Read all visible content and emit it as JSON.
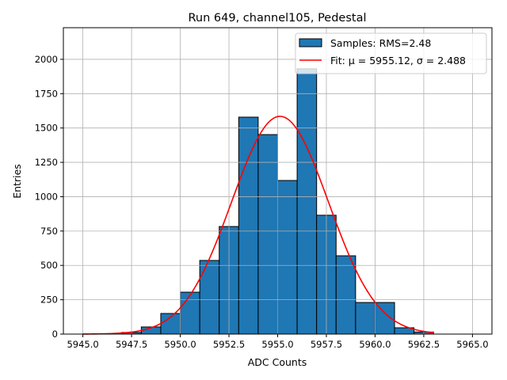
{
  "chart_data": {
    "type": "bar",
    "title": "Run 649, channel105, Pedestal",
    "xlabel": "ADC Counts",
    "ylabel": "Entries",
    "xlim": [
      5944,
      5966
    ],
    "ylim": [
      0,
      2230
    ],
    "grid": true,
    "x_ticks": [
      5945.0,
      5947.5,
      5950.0,
      5952.5,
      5955.0,
      5957.5,
      5960.0,
      5962.5,
      5965.0
    ],
    "x_tick_labels": [
      "5945.0",
      "5947.5",
      "5950.0",
      "5952.5",
      "5955.0",
      "5957.5",
      "5960.0",
      "5962.5",
      "5965.0"
    ],
    "y_ticks": [
      0,
      250,
      500,
      750,
      1000,
      1250,
      1500,
      1750,
      2000
    ],
    "y_tick_labels": [
      "0",
      "250",
      "500",
      "750",
      "1000",
      "1250",
      "1500",
      "1750",
      "2000"
    ],
    "bin_edges": [
      5947,
      5948,
      5949,
      5950,
      5951,
      5952,
      5953,
      5954,
      5955,
      5956,
      5957,
      5958,
      5959,
      5960,
      5961,
      5962,
      5963
    ],
    "values": [
      12,
      52,
      150,
      305,
      536,
      783,
      1579,
      1452,
      1118,
      1931,
      865,
      570,
      230,
      230,
      46,
      15
    ],
    "fit": {
      "mu": 5955.12,
      "sigma": 2.488,
      "amplitude": 1585,
      "x_range": [
        5945,
        5963
      ]
    },
    "legend": {
      "placement": "top-right",
      "entries": [
        "Samples: RMS=2.48",
        "Fit: μ = 5955.12, σ = 2.488"
      ]
    },
    "colors": {
      "bar": "#1f77b4",
      "fit": "#ff0000",
      "grid": "#b0b0b0"
    }
  }
}
